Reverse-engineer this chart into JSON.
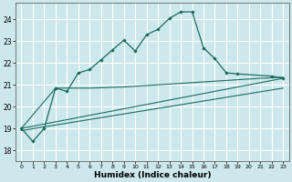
{
  "xlabel": "Humidex (Indice chaleur)",
  "bg_color": "#cce8ec",
  "grid_color": "#ffffff",
  "line_color": "#1a6b5e",
  "xlim": [
    -0.5,
    23.5
  ],
  "ylim": [
    17.5,
    24.75
  ],
  "yticks": [
    18,
    19,
    20,
    21,
    22,
    23,
    24
  ],
  "xticks": [
    0,
    1,
    2,
    3,
    4,
    5,
    6,
    7,
    8,
    9,
    10,
    11,
    12,
    13,
    14,
    15,
    16,
    17,
    18,
    19,
    20,
    21,
    22,
    23
  ],
  "main_x": [
    0,
    1,
    2,
    3,
    4,
    5,
    6,
    7,
    8,
    9,
    10,
    11,
    12,
    13,
    14,
    15,
    16,
    17,
    18,
    19,
    22,
    23
  ],
  "main_y": [
    19.0,
    18.4,
    19.0,
    20.85,
    20.7,
    21.55,
    21.7,
    22.15,
    22.6,
    23.05,
    22.55,
    23.3,
    23.55,
    24.05,
    24.35,
    24.35,
    22.7,
    22.2,
    21.55,
    21.5,
    21.4,
    21.3
  ],
  "trend1_x": [
    0,
    3,
    6,
    9,
    12,
    15,
    18,
    21,
    23
  ],
  "trend1_y": [
    19.0,
    20.85,
    20.85,
    20.9,
    21.0,
    21.1,
    21.2,
    21.3,
    21.35
  ],
  "trend2_x": [
    0,
    23
  ],
  "trend2_y": [
    18.9,
    20.85
  ],
  "trend3_x": [
    0,
    23
  ],
  "trend3_y": [
    19.0,
    21.3
  ]
}
